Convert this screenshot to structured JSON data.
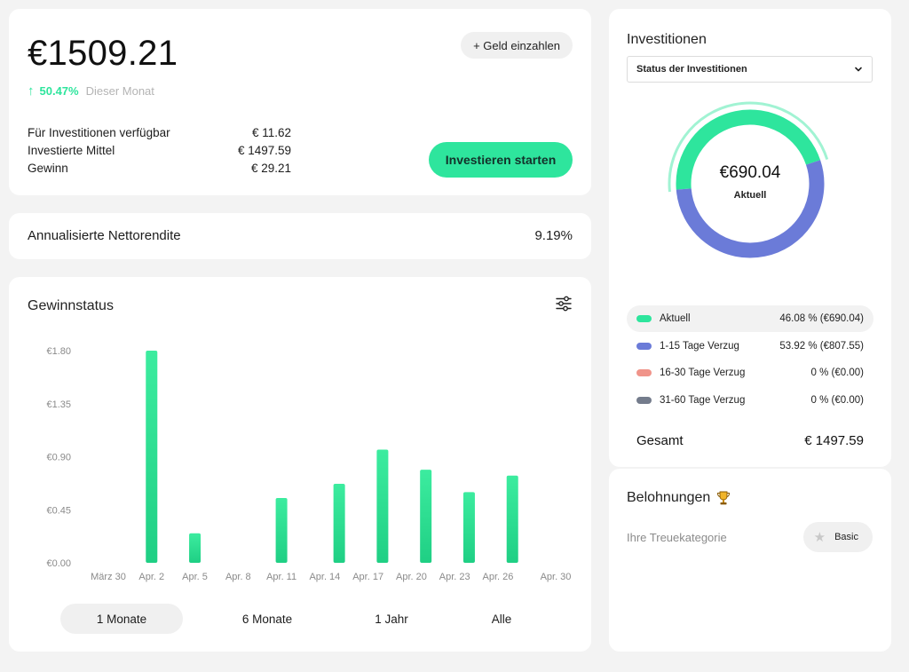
{
  "balance": {
    "amount": "€1509.21",
    "deposit_label": "+ Geld einzahlen",
    "growth_pct": "50.47%",
    "growth_period": "Dieser Monat",
    "stats": [
      {
        "label": "Für Investitionen verfügbar",
        "value": "€ 11.62"
      },
      {
        "label": "Investierte Mittel",
        "value": "€ 1497.59"
      },
      {
        "label": "Gewinn",
        "value": "€ 29.21"
      }
    ],
    "invest_button": "Investieren starten"
  },
  "yield": {
    "label": "Annualisierte Nettorendite",
    "value": "9.19%"
  },
  "profit": {
    "title": "Gewinnstatus",
    "range_tabs": [
      "1 Monate",
      "6 Monate",
      "1 Jahr",
      "Alle"
    ],
    "active_tab": "1 Monate"
  },
  "chart_data": {
    "type": "bar",
    "title": "",
    "xlabel": "",
    "ylabel": "",
    "ylim": [
      0,
      1.8
    ],
    "y_ticks": [
      "€0.00",
      "€0.45",
      "€0.90",
      "€1.35",
      "€1.80"
    ],
    "x_ticks": [
      "März 30",
      "Apr. 2",
      "Apr. 5",
      "Apr. 8",
      "Apr. 11",
      "Apr. 14",
      "Apr. 17",
      "Apr. 20",
      "Apr. 23",
      "Apr. 26",
      "Apr. 30"
    ],
    "x_domain": [
      0,
      31
    ],
    "bars": [
      {
        "day": 3,
        "value": 1.8
      },
      {
        "day": 6,
        "value": 0.25
      },
      {
        "day": 12,
        "value": 0.55
      },
      {
        "day": 16,
        "value": 0.67
      },
      {
        "day": 19,
        "value": 0.96
      },
      {
        "day": 22,
        "value": 0.79
      },
      {
        "day": 25,
        "value": 0.6
      },
      {
        "day": 28,
        "value": 0.74
      }
    ],
    "bar_color": "#2ee59d"
  },
  "investments": {
    "title": "Investitionen",
    "select_value": "Status der Investitionen",
    "donut_value": "€690.04",
    "donut_label": "Aktuell",
    "legend": [
      {
        "name": "Aktuell",
        "value": "46.08 % (€690.04)",
        "color": "#2ee59d",
        "pct": 46.08
      },
      {
        "name": "1-15 Tage Verzug",
        "value": "53.92 % (€807.55)",
        "color": "#6b7bd8",
        "pct": 53.92
      },
      {
        "name": "16-30 Tage Verzug",
        "value": "0 % (€0.00)",
        "color": "#f0948a",
        "pct": 0
      },
      {
        "name": "31-60 Tage Verzug",
        "value": "0 % (€0.00)",
        "color": "#747c8c",
        "pct": 0
      }
    ],
    "total_label": "Gesamt",
    "total_value": "€ 1497.59"
  },
  "rewards": {
    "title": "Belohnungen",
    "loyalty_label": "Ihre Treuekategorie",
    "tier": "Basic"
  },
  "icons": {
    "filter": "sliders-icon",
    "trophy": "trophy-icon",
    "star": "star-icon",
    "chevron": "chevron-down-icon"
  }
}
